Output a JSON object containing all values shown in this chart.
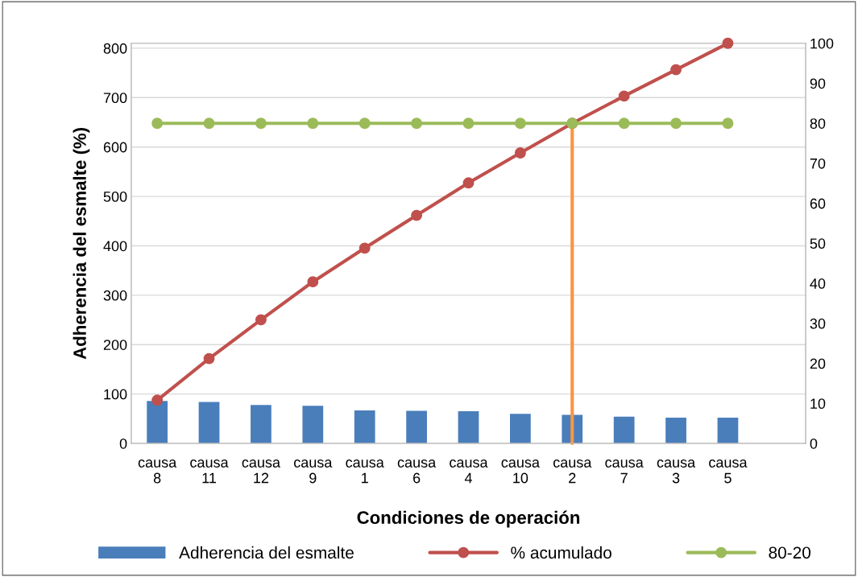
{
  "chart_data": {
    "type": "bar",
    "xlabel": "Condiciones de operación",
    "ylabel": "Adherencia del esmalte (%)",
    "categories": [
      "causa 8",
      "causa 11",
      "causa 12",
      "causa 9",
      "causa 1",
      "causa 6",
      "causa 4",
      "causa 10",
      "causa 2",
      "causa 7",
      "causa 3",
      "causa 5",
      null
    ],
    "series": [
      {
        "name": "Adherencia del esmalte",
        "color": "#4a7ebb",
        "values": [
          86,
          84,
          78,
          76,
          67,
          66,
          65,
          60,
          58,
          54,
          52,
          52,
          null
        ]
      },
      {
        "name": "% acumulado",
        "type": "line",
        "axis": "y2",
        "color": "#c0504d",
        "marker": "circle",
        "values": [
          10.8,
          21.2,
          30.9,
          40.4,
          48.8,
          57.0,
          65.1,
          72.6,
          80.0,
          86.8,
          93.4,
          100,
          null
        ]
      },
      {
        "name": "80-20",
        "type": "line",
        "axis": "y2",
        "color": "#9bbb59",
        "marker": "circle",
        "values": [
          80,
          80,
          80,
          80,
          80,
          80,
          80,
          80,
          80,
          80,
          80,
          80,
          null
        ]
      },
      {
        "type": "line",
        "axis": "y2",
        "color": "#f79646",
        "marker": "none",
        "x": [
          "causa 2",
          "causa 2"
        ],
        "values": [
          0,
          80
        ]
      }
    ],
    "ylim": [
      0,
      810
    ],
    "yticks": [
      0,
      100,
      200,
      300,
      400,
      500,
      600,
      700,
      800
    ],
    "y2lim": [
      0,
      100
    ],
    "y2ticks": [
      0,
      10,
      20,
      30,
      40,
      50,
      60,
      70,
      80,
      90,
      100
    ],
    "grid": "y",
    "legend": "bottom"
  }
}
